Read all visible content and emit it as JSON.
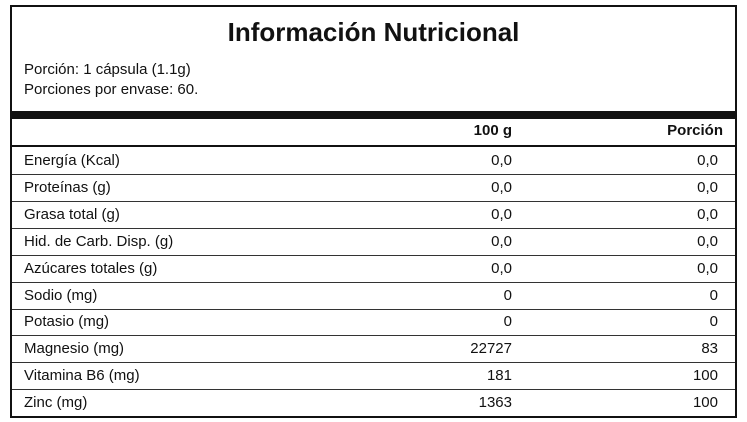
{
  "header": {
    "title": "Información Nutricional",
    "serving": [
      "Porción: 1 cápsula (1.1g)",
      "Porciones por envase: 60."
    ]
  },
  "table": {
    "columns": [
      "100 g",
      "Porción"
    ],
    "rows": [
      [
        "Energía (Kcal)",
        "0,0",
        "0,0"
      ],
      [
        "Proteínas (g)",
        "0,0",
        "0,0"
      ],
      [
        "Grasa total (g)",
        "0,0",
        "0,0"
      ],
      [
        "Hid. de Carb. Disp. (g)",
        "0,0",
        "0,0"
      ],
      [
        "Azúcares totales (g)",
        "0,0",
        "0,0"
      ],
      [
        "Sodio (mg)",
        "0",
        "0"
      ],
      [
        "Potasio (mg)",
        "0",
        "0"
      ],
      [
        "Magnesio (mg)",
        "22727",
        "83"
      ],
      [
        "Vitamina B6 (mg)",
        "181",
        "100"
      ],
      [
        "Zinc (mg)",
        "1363",
        "100"
      ]
    ]
  }
}
